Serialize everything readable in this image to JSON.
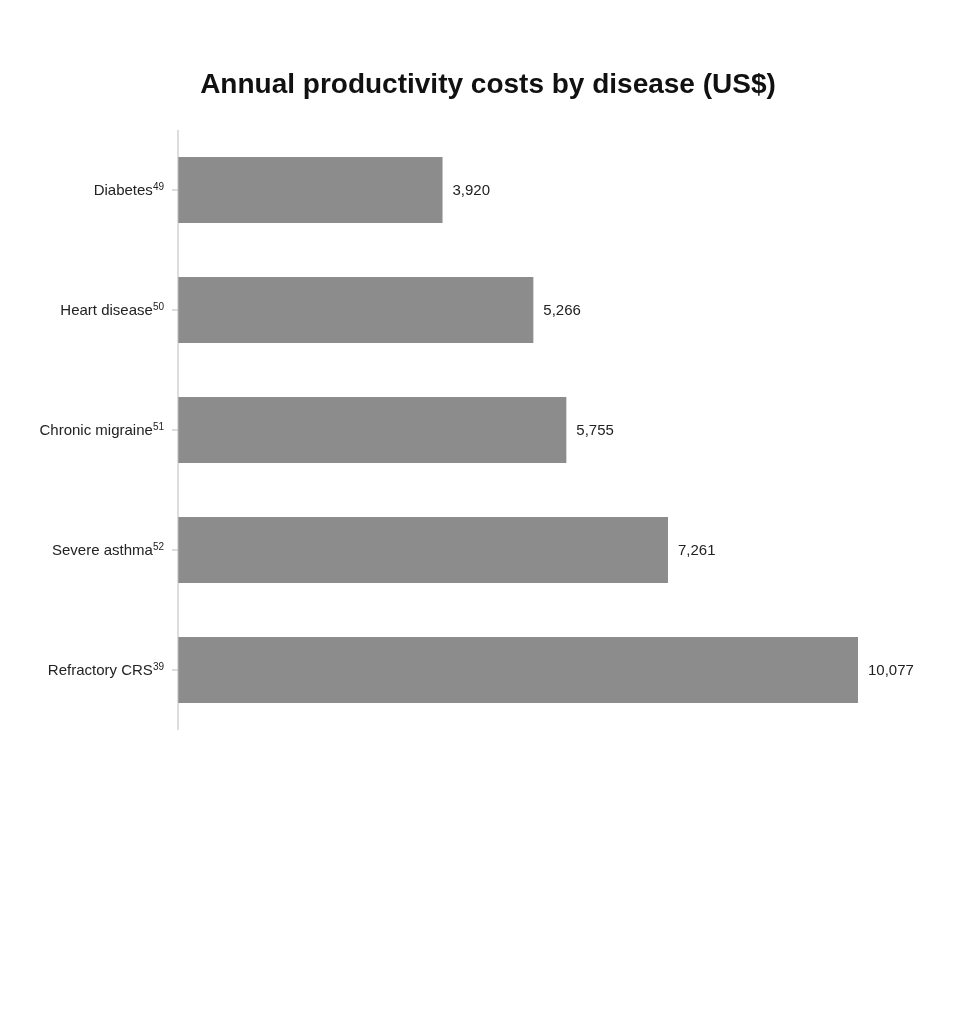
{
  "chart_data": {
    "type": "bar",
    "orientation": "horizontal",
    "title": "Annual productivity costs by disease (US$)",
    "categories": [
      "Diabetes$^{49}$",
      "Heart disease$^{50}$",
      "Chronic migraine$^{51}$",
      "Severe asthma$^{52}$",
      "Refractory CRS$^{39}$"
    ],
    "values": [
      3920,
      5266,
      5755,
      7261,
      10077
    ],
    "value_labels": [
      "3,920",
      "5,266",
      "5,755",
      "7,261",
      "10,077"
    ],
    "color": "#8c8c8c",
    "grid": false,
    "legend": false
  }
}
